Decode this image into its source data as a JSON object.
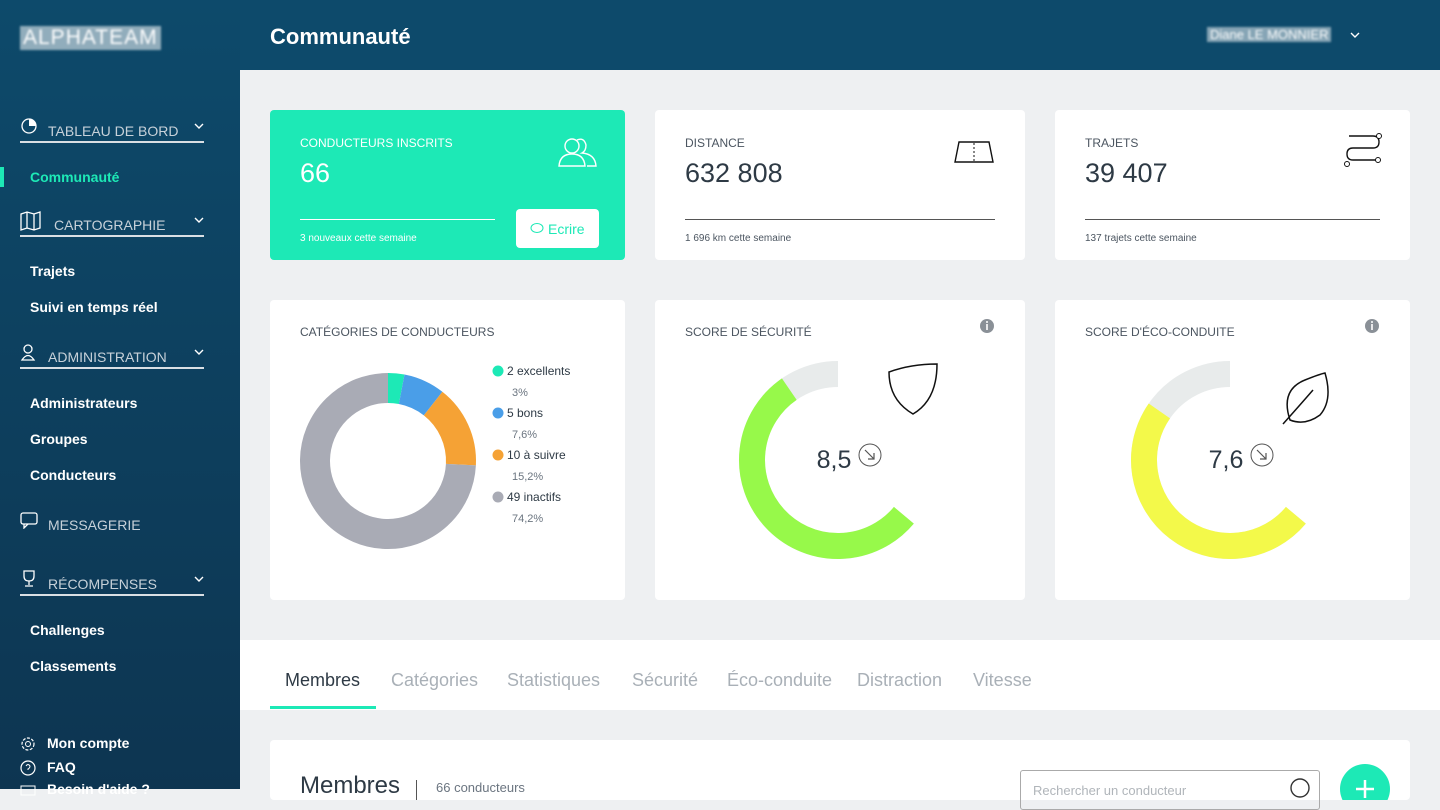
{
  "sidebar": {
    "logo": "ALPHATEAM",
    "sections": [
      {
        "label": "TABLEAU DE BORD",
        "items": [
          "Communauté"
        ]
      },
      {
        "label": "CARTOGRAPHIE",
        "items": [
          "Trajets",
          "Suivi en temps réel"
        ]
      },
      {
        "label": "ADMINISTRATION",
        "items": [
          "Administrateurs",
          "Groupes",
          "Conducteurs"
        ]
      },
      {
        "label": "MESSAGERIE",
        "items": []
      },
      {
        "label": "RÉCOMPENSES",
        "items": [
          "Challenges",
          "Classements"
        ]
      }
    ],
    "footer": [
      "Mon compte",
      "FAQ",
      "Besoin d'aide ?"
    ]
  },
  "header": {
    "title": "Communauté",
    "user": "Diane LE MONNIER"
  },
  "stats": [
    {
      "label": "CONDUCTEURS INSCRITS",
      "value": "66",
      "note": "3 nouveaux cette semaine",
      "button": "Ecrire"
    },
    {
      "label": "DISTANCE",
      "value": "632 808",
      "note": "1 696 km cette semaine"
    },
    {
      "label": "TRAJETS",
      "value": "39 407",
      "note": "137 trajets cette semaine"
    }
  ],
  "chart_data": [
    {
      "type": "donut",
      "title": "CATÉGORIES DE CONDUCTEURS",
      "categories": [
        "2 excellents",
        "5 bons",
        "10 à suivre",
        "49 inactifs"
      ],
      "values": [
        3,
        7.6,
        15.2,
        74.2
      ],
      "value_labels": [
        "3%",
        "7,6%",
        "15,2%",
        "74,2%"
      ],
      "colors": [
        "#1de9b6",
        "#4a9ee8",
        "#f5a235",
        "#a9abb5"
      ]
    },
    {
      "type": "gauge",
      "title": "SCORE DE SÉCURITÉ",
      "values": [
        8.5
      ],
      "value_labels": [
        "8,5"
      ],
      "ylim": [
        0,
        10
      ],
      "color": "#97f94a"
    },
    {
      "type": "gauge",
      "title": "SCORE D'ÉCO-CONDUITE",
      "values": [
        7.6
      ],
      "value_labels": [
        "7,6"
      ],
      "ylim": [
        0,
        10
      ],
      "color": "#f3f94a"
    }
  ],
  "tabs": [
    "Membres",
    "Catégories",
    "Statistiques",
    "Sécurité",
    "Éco-conduite",
    "Distraction",
    "Vitesse"
  ],
  "members": {
    "title": "Membres",
    "count": "66 conducteurs",
    "search": "Rechercher un conducteur"
  }
}
